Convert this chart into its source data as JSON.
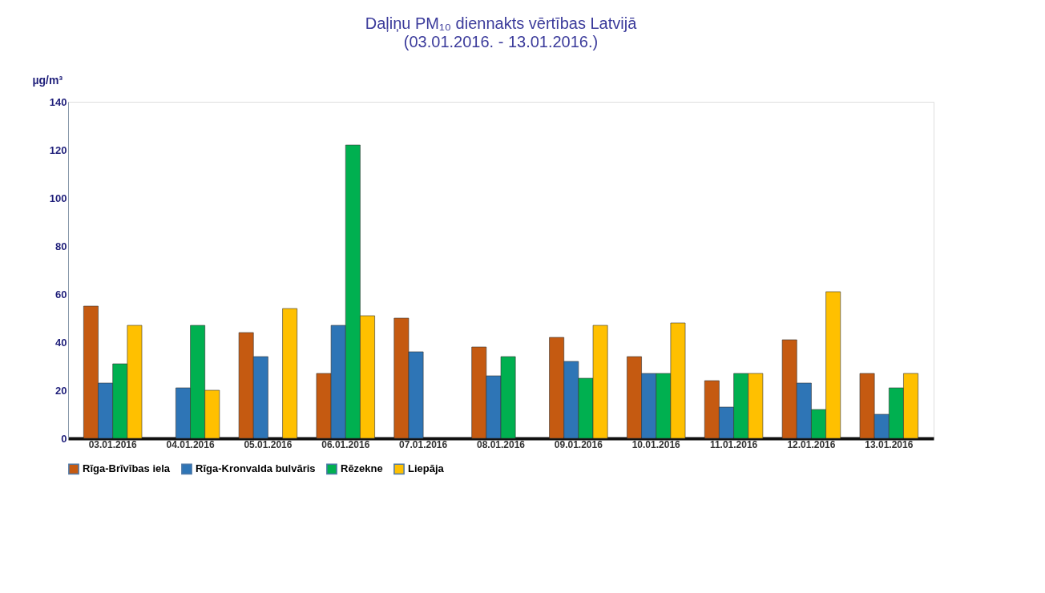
{
  "chart_data": {
    "type": "bar",
    "title": "Daļiņu PM₁₀ diennakts vērtības Latvijā",
    "subtitle": "(03.01.2016. - 13.01.2016.)",
    "ylabel": "µg/m³",
    "categories": [
      "03.01.2016",
      "04.01.2016",
      "05.01.2016",
      "06.01.2016",
      "07.01.2016",
      "08.01.2016",
      "09.01.2016",
      "10.01.2016",
      "11.01.2016",
      "12.01.2016",
      "13.01.2016"
    ],
    "series": [
      {
        "name": "Rīga-Brīvības iela",
        "color": "#c55a11",
        "values": [
          55,
          null,
          44,
          27,
          50,
          38,
          42,
          34,
          24,
          41,
          27
        ]
      },
      {
        "name": "Rīga-Kronvalda bulvāris",
        "color": "#2e75b6",
        "values": [
          23,
          21,
          34,
          47,
          36,
          26,
          32,
          27,
          13,
          23,
          10
        ]
      },
      {
        "name": "Rēzekne",
        "color": "#00b050",
        "values": [
          31,
          47,
          null,
          122,
          null,
          34,
          25,
          27,
          27,
          12,
          21
        ]
      },
      {
        "name": "Liepāja",
        "color": "#ffc000",
        "values": [
          47,
          20,
          54,
          51,
          null,
          null,
          47,
          48,
          27,
          61,
          27
        ]
      }
    ],
    "ylim": [
      0,
      140
    ],
    "yticks": [
      0,
      20,
      40,
      60,
      80,
      100,
      120,
      140
    ],
    "grid": false,
    "legend": "bottom"
  }
}
